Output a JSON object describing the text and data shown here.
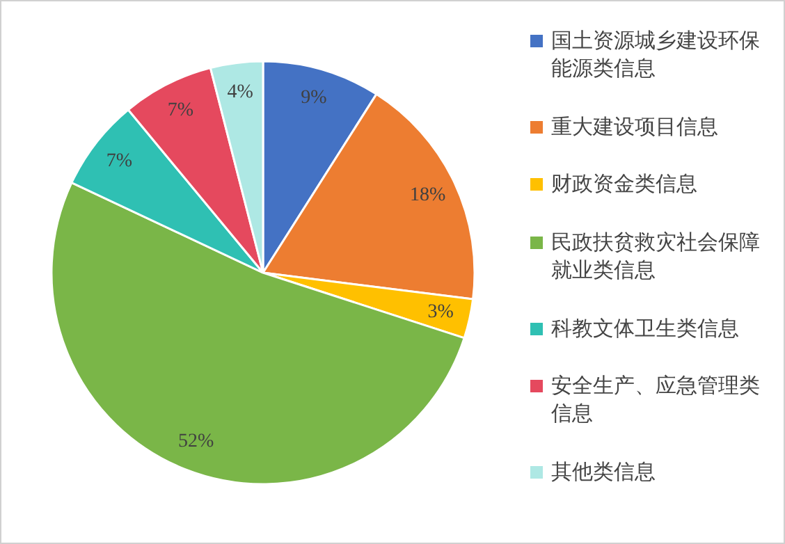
{
  "chart_data": {
    "type": "pie",
    "categories": [
      "国土资源城乡建设环保能源类信息",
      "重大建设项目信息",
      "财政资金类信息",
      "民政扶贫救灾社会保障就业类信息",
      "科教文体卫生类信息",
      "安全生产、应急管理类信息",
      "其他类信息"
    ],
    "values": [
      9,
      18,
      3,
      52,
      7,
      7,
      4
    ],
    "value_labels": [
      "9%",
      "18%",
      "3%",
      "52%",
      "7%",
      "7%",
      "4%"
    ],
    "colors": [
      "#4472c4",
      "#ed7d31",
      "#ffc000",
      "#7ab648",
      "#2fc0b3",
      "#e5495e",
      "#aee8e4"
    ],
    "legend": "right"
  }
}
